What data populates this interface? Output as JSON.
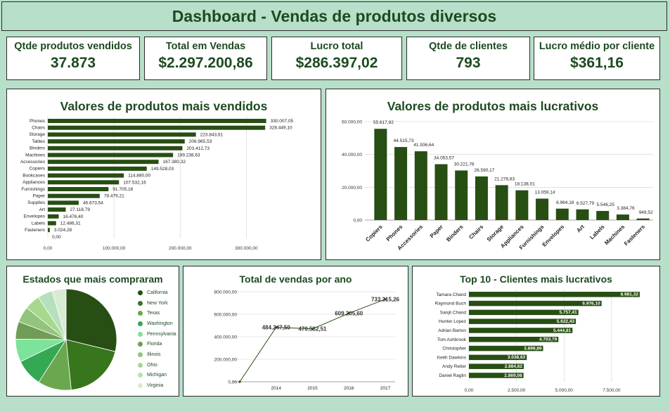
{
  "header": {
    "title": "Dashboard - Vendas de produtos diversos"
  },
  "kpis": [
    {
      "label": "Qtde produtos vendidos",
      "value": "37.873"
    },
    {
      "label": "Total em Vendas",
      "value": "$2.297.200,86"
    },
    {
      "label": "Lucro total",
      "value": "$286.397,02"
    },
    {
      "label": "Qtde de clientes",
      "value": "793"
    },
    {
      "label": "Lucro médio por cliente",
      "value": "$361,16"
    }
  ],
  "colors": {
    "dark": "#274e13",
    "bg": "#b8dfc9"
  },
  "chart_data": [
    {
      "type": "bar",
      "orientation": "horizontal",
      "title": "Valores de produtos mais vendidos",
      "categories": [
        "Phones",
        "Chairs",
        "Storage",
        "Tables",
        "Binders",
        "Machines",
        "Accessories",
        "Copiers",
        "Bookcases",
        "Appliances",
        "Furnishings",
        "Paper",
        "Supplies",
        "Art",
        "Envelopes",
        "Labels",
        "Fasteners"
      ],
      "values": [
        330007.05,
        328449.1,
        223843.61,
        206965.53,
        203412.73,
        189238.63,
        167380.32,
        149528.03,
        114880.0,
        107532.16,
        91705.16,
        78479.21,
        46673.54,
        27118.79,
        16476.4,
        12486.31,
        3024.28
      ],
      "value_labels": [
        "330.007,05",
        "328.449,10",
        "223.843,61",
        "206.965,53",
        "203.412,73",
        "189.238,63",
        "167.380,32",
        "149.528,03",
        "114.880,00",
        "107.532,16",
        "91.705,16",
        "78.479,21",
        "46.673,54",
        "27.118,79",
        "16.476,40",
        "12.486,31",
        "3.024,28"
      ],
      "extra_label": "0,00",
      "xticks": [
        "0,00",
        "100.000,00",
        "200.000,00",
        "300.000,00"
      ],
      "xlim": [
        0,
        340000
      ]
    },
    {
      "type": "bar",
      "title": "Valores de produtos mais lucrativos",
      "categories": [
        "Copiers",
        "Phones",
        "Accessories",
        "Paper",
        "Binders",
        "Chairs",
        "Storage",
        "Appliances",
        "Furnishings",
        "Envelopes",
        "Art",
        "Labels",
        "Machines",
        "Fasteners"
      ],
      "values": [
        55617.82,
        44515.73,
        41936.64,
        34053.57,
        30221.76,
        26590.17,
        21278.83,
        18138.01,
        13059.14,
        6964.18,
        6527.79,
        5546.25,
        3384.76,
        949.52
      ],
      "value_labels": [
        "55.617,82",
        "44.515,73",
        "41.936,64",
        "34.053,57",
        "30.221,76",
        "26.590,17",
        "21.278,83",
        "18.138,01",
        "13.059,14",
        "6.964,18",
        "6.527,79",
        "5.546,25",
        "3.384,76",
        "949,52"
      ],
      "yticks": [
        "0,00",
        "20.000,00",
        "40.000,00",
        "60.000,00"
      ],
      "ylim": [
        0,
        60000
      ]
    },
    {
      "type": "pie",
      "title": "Estados que mais compraram",
      "categories": [
        "California",
        "New York",
        "Texas",
        "Washington",
        "Pennsylvania",
        "Florida",
        "Illinois",
        "Ohio",
        "Michigan",
        "Virginia"
      ],
      "values": [
        457687.63,
        310876.27,
        170188.05,
        138641.27,
        116511.91,
        89473.71,
        80166.1,
        78258.14,
        76269.61,
        70636.72
      ],
      "colors": [
        "#274e13",
        "#38761d",
        "#6aa84f",
        "#34a853",
        "#7ce39a",
        "#6f9d55",
        "#93c47d",
        "#a6d98c",
        "#b6e0bd",
        "#d9ead3"
      ]
    },
    {
      "type": "line",
      "title": "Total de vendas por ano",
      "x": [
        "2013",
        "2014",
        "2015",
        "2016",
        "2017"
      ],
      "xtick_labels": [
        "",
        "2014",
        "2015",
        "2016",
        "2017"
      ],
      "values": [
        0,
        484247.5,
        470532.51,
        609205.6,
        733215.26
      ],
      "value_labels": [
        "",
        "484.247,50",
        "470.532,51",
        "609.205,60",
        "733.215,26"
      ],
      "yticks": [
        "0,00",
        "200.000,00",
        "400.000,00",
        "600.000,00",
        "800.000,00"
      ],
      "ylim": [
        0,
        800000
      ]
    },
    {
      "type": "bar",
      "orientation": "horizontal",
      "title": "Top 10 - Clientes mais lucrativos",
      "categories": [
        "Tamara Chand",
        "Raymond Buch",
        "Sanjit Chand",
        "Hunter Lopez",
        "Adrian Barton",
        "Tom Ashbrook",
        "Christopher",
        "Keith Dawkins",
        "Andy Reiter",
        "Daniel Raglin"
      ],
      "values": [
        8981.32,
        6976.1,
        5757.41,
        5622.43,
        5444.81,
        4703.79,
        3899.89,
        3038.63,
        2884.62,
        2869.08
      ],
      "value_labels": [
        "8.981,32",
        "6.976,10",
        "5.757,41",
        "5.622,43",
        "5.444,81",
        "4.703,79",
        "3.899,89",
        "3.038,63",
        "2.884,62",
        "2.869,08"
      ],
      "xticks": [
        "0,00",
        "2.500,00",
        "5.000,00",
        "7.500,00"
      ],
      "xlim": [
        0,
        9500
      ]
    }
  ]
}
